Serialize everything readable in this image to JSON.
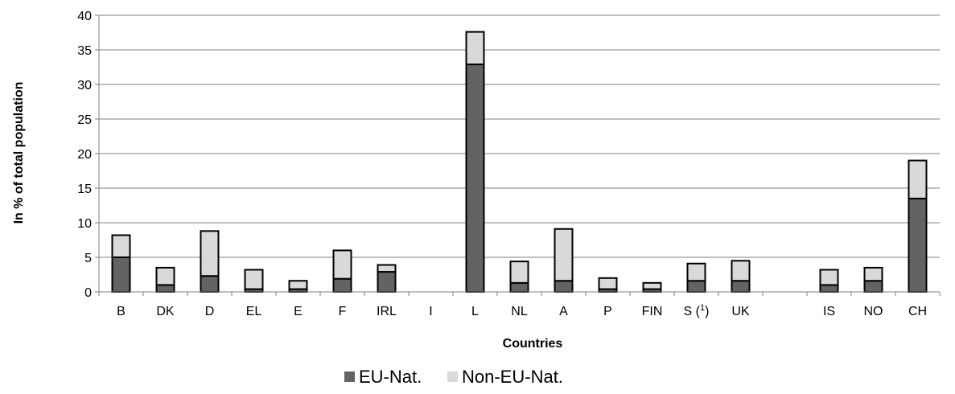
{
  "chart_data": {
    "type": "bar",
    "stacked": true,
    "xlabel": "Countries",
    "ylabel": "In % of total population",
    "ylim": [
      0,
      40
    ],
    "yticks": [
      0,
      5,
      10,
      15,
      20,
      25,
      30,
      35,
      40
    ],
    "grid": "horizontal",
    "legend_position": "bottom",
    "categories": [
      "B",
      "DK",
      "D",
      "EL",
      "E",
      "F",
      "IRL",
      "I",
      "L",
      "NL",
      "A",
      "P",
      "FIN",
      "S (1)",
      "UK",
      "",
      "IS",
      "NO",
      "CH"
    ],
    "series": [
      {
        "name": "EU-Nat.",
        "color": "#636363",
        "values": [
          5.0,
          1.0,
          2.3,
          0.4,
          0.4,
          1.9,
          2.9,
          0,
          32.9,
          1.3,
          1.6,
          0.4,
          0.4,
          1.6,
          1.6,
          0,
          1.0,
          1.6,
          13.5
        ]
      },
      {
        "name": "Non-EU-Nat.",
        "color": "#d9d9d9",
        "values": [
          3.2,
          2.5,
          6.5,
          2.8,
          1.2,
          4.1,
          1.0,
          0,
          4.7,
          3.1,
          7.5,
          1.6,
          0.9,
          2.5,
          2.9,
          0,
          2.2,
          1.9,
          5.5
        ]
      }
    ]
  }
}
